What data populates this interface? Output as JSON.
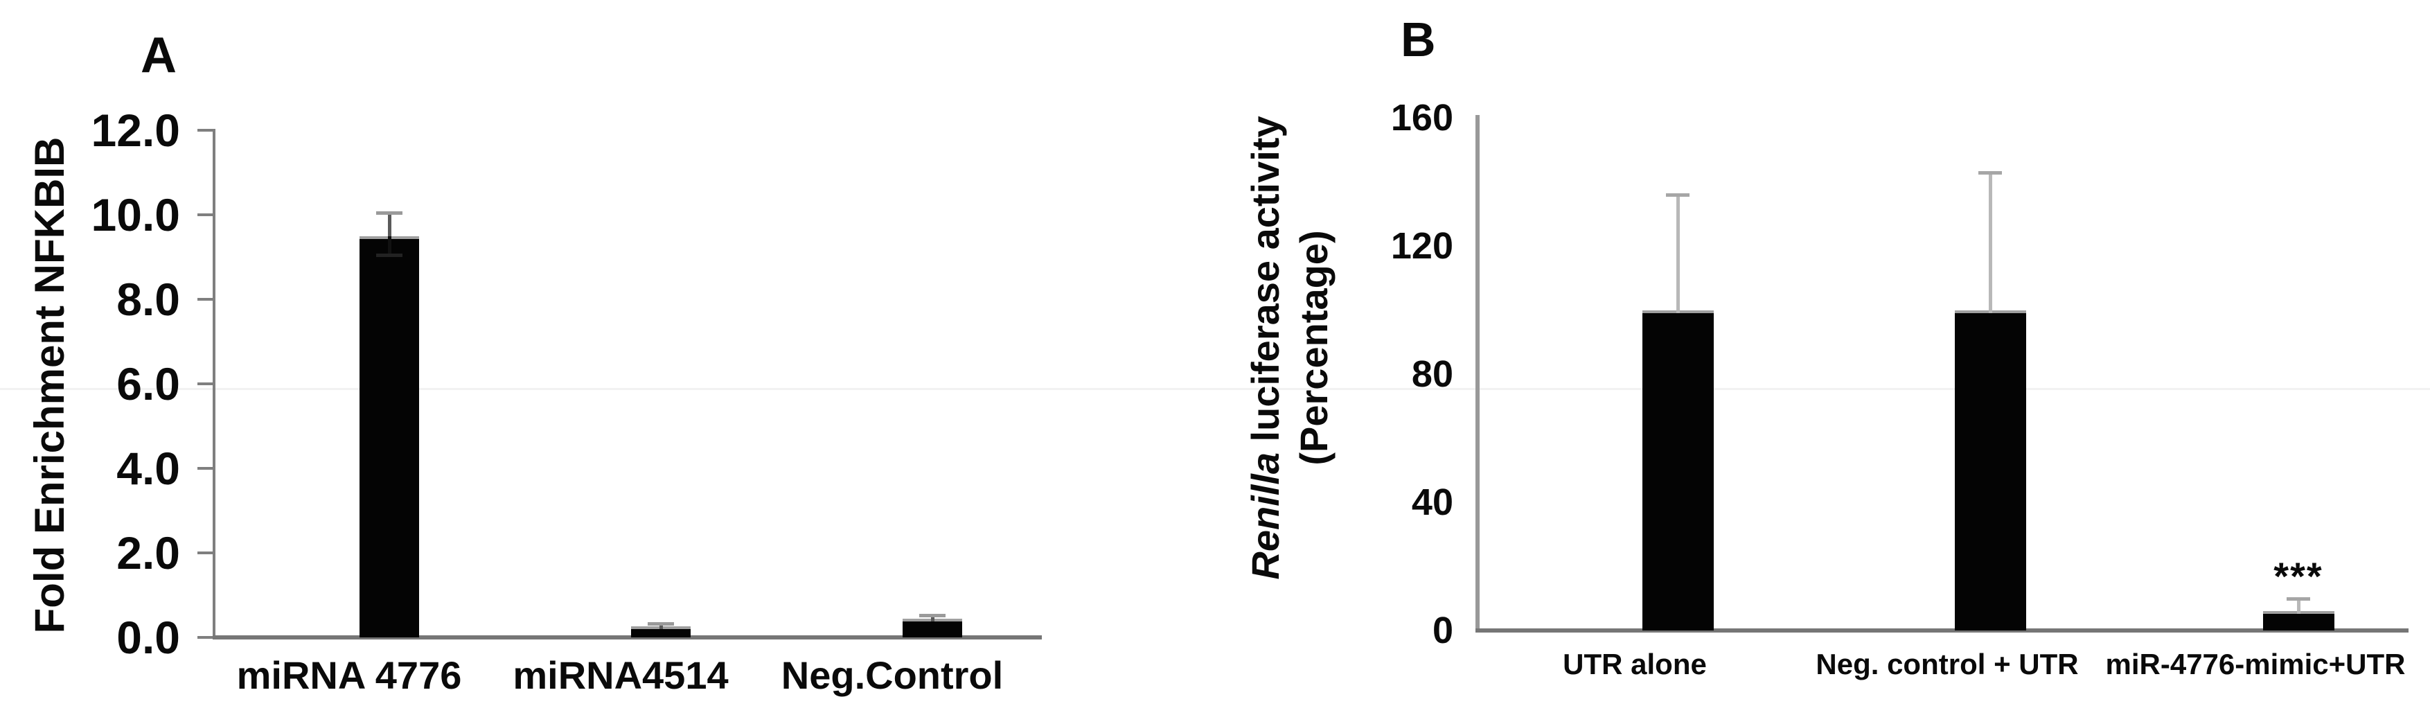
{
  "figure": {
    "background": "#ffffff",
    "panels": [
      "A",
      "B"
    ]
  },
  "colors": {
    "bar_fill": "#040404",
    "bar_top_edge": "#a0a0a0",
    "axis_a": "#7f7f7f",
    "axis_b": "#999999",
    "baseline": "#767676",
    "error_stem_a": "#5a5a5a",
    "error_cap_a": "#9a9a9a",
    "error_stem_b": "#b8b8b8",
    "error_cap_b": "#a6a6a6",
    "text": "#0a0a0a",
    "artifact_line": "#f2f2f2"
  },
  "chart_data": [
    {
      "type": "bar",
      "panel_label": "A",
      "title": "",
      "xlabel": "",
      "ylabel": "Fold Enrichment NFKBIB",
      "categories": [
        "miRNA 4776",
        "miRNA4514",
        "Neg.Control"
      ],
      "values": [
        9.5,
        0.26,
        0.45
      ],
      "errors_up": [
        0.55,
        0.07,
        0.07
      ],
      "errors_down": [
        0.45,
        null,
        null
      ],
      "ylim": [
        0,
        12
      ],
      "yticks": [
        "0.0",
        "2.0",
        "4.0",
        "6.0",
        "8.0",
        "10.0",
        "12.0"
      ],
      "grid": false,
      "legend": false,
      "annotations": []
    },
    {
      "type": "bar",
      "panel_label": "B",
      "title": "",
      "xlabel": "",
      "ylabel_italic": "Renilla",
      "ylabel_rest": " luciferase activity",
      "ylabel_line2": "(Percentage)",
      "categories": [
        "UTR alone",
        "Neg. control + UTR",
        "miR-4776-mimic+UTR"
      ],
      "values": [
        100,
        100,
        6
      ],
      "errors_up": [
        36,
        43,
        4
      ],
      "errors_down": [
        null,
        null,
        null
      ],
      "ylim": [
        0,
        160
      ],
      "yticks": [
        "0",
        "40",
        "80",
        "120",
        "160"
      ],
      "grid": false,
      "legend": false,
      "annotations": [
        {
          "category_index": 2,
          "text": "***"
        }
      ]
    }
  ]
}
